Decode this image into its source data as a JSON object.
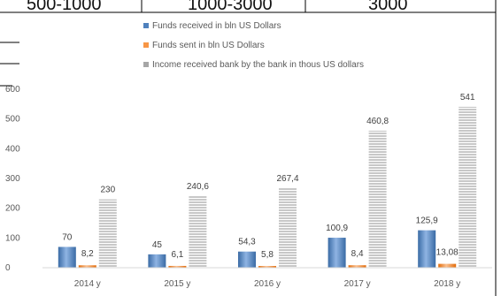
{
  "fragment": {
    "cells": [
      "500-1000",
      "1000-3000",
      "3000"
    ]
  },
  "chart_data": {
    "type": "bar",
    "categories": [
      "2014 y",
      "2015 y",
      "2016 y",
      "2017 y",
      "2018 y"
    ],
    "series": [
      {
        "name": "Funds received in bln US Dollars",
        "values": [
          70,
          45,
          54.3,
          100.9,
          125.9
        ],
        "labels": [
          "70",
          "45",
          "54,3",
          "100,9",
          "125,9"
        ],
        "color": "#4f81bd"
      },
      {
        "name": "Funds sent in bln US Dollars",
        "values": [
          8.2,
          6.1,
          5.8,
          8.4,
          13.08
        ],
        "labels": [
          "8,2",
          "6,1",
          "5,8",
          "8,4",
          "13,08"
        ],
        "color": "#f79646"
      },
      {
        "name": "Income received bank by the bank in thous US dollars",
        "values": [
          230,
          240.6,
          267.4,
          460.8,
          541
        ],
        "labels": [
          "230",
          "240,6",
          "267,4",
          "460,8",
          "541"
        ],
        "color": "#a6a6a6"
      }
    ],
    "yticks": [
      0,
      100,
      200,
      300,
      400,
      500,
      600
    ],
    "ylim": [
      0,
      600
    ],
    "grid": false,
    "legend_position": "top",
    "xlabel": "",
    "ylabel": "",
    "title": ""
  }
}
